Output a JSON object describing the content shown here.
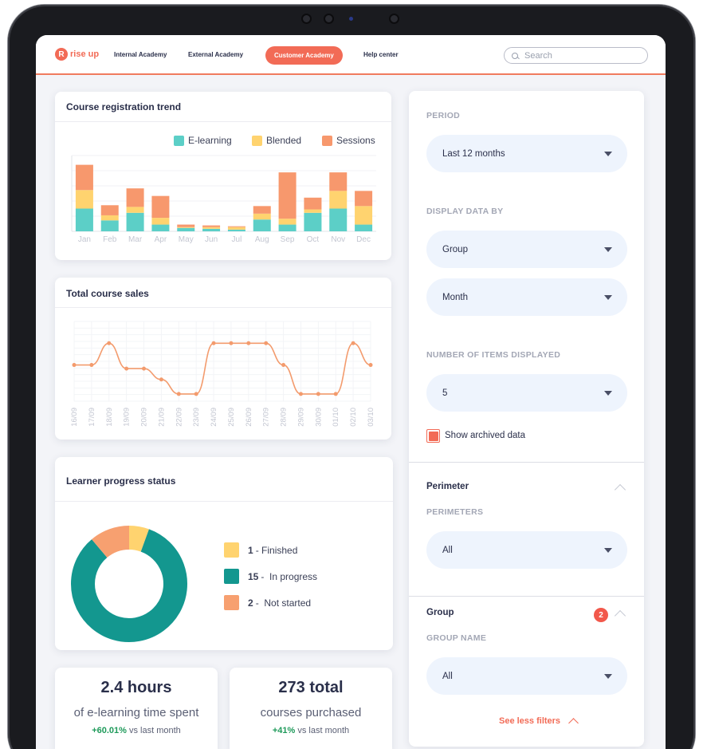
{
  "brand": {
    "name": "rise up",
    "mark": "R",
    "accent": "#f26b56"
  },
  "nav": {
    "items": [
      {
        "label": "Internal Academy"
      },
      {
        "label": "External Academy"
      },
      {
        "label": "Customer Academy",
        "active": true
      },
      {
        "label": "Help center"
      }
    ],
    "search_placeholder": "Search"
  },
  "registration_card": {
    "title": "Course registration trend",
    "chart_data": {
      "type": "bar",
      "stacked": true,
      "categories": [
        "Jan",
        "Feb",
        "Mar",
        "Apr",
        "May",
        "Jun",
        "Jul",
        "Aug",
        "Sep",
        "Oct",
        "Nov",
        "Dec"
      ],
      "series": [
        {
          "name": "E-learning",
          "color": "#5ccfc7",
          "values": [
            27,
            13,
            22,
            8,
            4,
            3,
            2,
            14,
            8,
            22,
            27,
            8
          ]
        },
        {
          "name": "Blended",
          "color": "#ffd36f",
          "values": [
            22,
            6,
            7,
            8,
            1,
            2,
            3,
            7,
            7,
            4,
            21,
            22
          ]
        },
        {
          "name": "Sessions",
          "color": "#f7986d",
          "values": [
            30,
            12,
            22,
            26,
            3,
            2,
            1,
            9,
            55,
            14,
            22,
            18
          ]
        }
      ],
      "ylim": [
        0,
        90
      ],
      "grid": true
    }
  },
  "sales_card": {
    "title": "Total course sales",
    "chart_data": {
      "type": "line",
      "categories": [
        "16/09",
        "17/09",
        "18/09",
        "19/09",
        "20/09",
        "21/09",
        "22/09",
        "23/09",
        "24/09",
        "25/09",
        "26/09",
        "27/09",
        "28/09",
        "29/09",
        "30/09",
        "01/10",
        "02/10",
        "03/10"
      ],
      "series": [
        {
          "color": "#f39b6d",
          "values": [
            4,
            4,
            7,
            3.5,
            3.5,
            2,
            0,
            0,
            7,
            7,
            7,
            7,
            4,
            0,
            0,
            0,
            7,
            4
          ]
        }
      ],
      "ylim": [
        -1,
        10
      ],
      "grid": true
    }
  },
  "progress_card": {
    "title": "Learner progress status",
    "chart_data": {
      "type": "pie",
      "donut": true,
      "slices": [
        {
          "label": "Finished",
          "value": 1,
          "color": "#ffd36f"
        },
        {
          "label": "In progress",
          "value": 15,
          "color": "#13978f"
        },
        {
          "label": "Not started",
          "value": 2,
          "color": "#f7a070"
        }
      ]
    },
    "legend": [
      {
        "count": "1",
        "sep": "-",
        "label": "Finished"
      },
      {
        "count": "15",
        "sep": "-",
        "label": "In progress"
      },
      {
        "count": "2",
        "sep": "-",
        "label": "Not started"
      }
    ]
  },
  "kpis": [
    {
      "value": "2.4 hours",
      "label": "of e-learning time spent",
      "delta": "+60.01%",
      "delta_suffix": "vs last month"
    },
    {
      "value": "273 total",
      "label": "courses purchased",
      "delta": "+41%",
      "delta_suffix": "vs last month"
    }
  ],
  "filters": {
    "period_label": "PERIOD",
    "period_value": "Last 12 months",
    "display_label": "DISPLAY DATA BY",
    "display_value_1": "Group",
    "display_value_2": "Month",
    "items_label": "NUMBER OF ITEMS DISPLAYED",
    "items_value": "5",
    "archived_label": "Show archived data",
    "archived_checked": true,
    "perimeter_title": "Perimeter",
    "perimeters_label": "PERIMETERS",
    "perimeters_value": "All",
    "group_title": "Group",
    "group_badge": "2",
    "group_name_label": "GROUP NAME",
    "group_name_value": "All",
    "see_less": "See less filters"
  }
}
